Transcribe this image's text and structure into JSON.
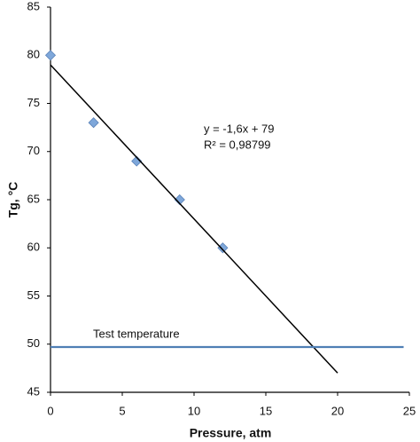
{
  "chart_data": {
    "type": "scatter",
    "x_label": "Pressure, atm",
    "y_label": "Tg, °C",
    "xlim": [
      0,
      25
    ],
    "ylim": [
      45,
      85
    ],
    "xticks": [
      0,
      5,
      10,
      15,
      20,
      25
    ],
    "yticks": [
      45,
      50,
      55,
      60,
      65,
      70,
      75,
      80,
      85
    ],
    "grid": false,
    "series": [
      {
        "name": "Tg",
        "mode": "markers",
        "color": "#7ea7da",
        "x": [
          0,
          3,
          6,
          9,
          12
        ],
        "values": [
          80,
          73,
          69,
          65,
          60
        ]
      },
      {
        "name": "Trendline",
        "mode": "line",
        "color": "#000000",
        "x": [
          0,
          20
        ],
        "values": [
          79,
          47
        ]
      },
      {
        "name": "Test temperature",
        "mode": "line",
        "color": "#4f7fb5",
        "x": [
          0,
          24.6
        ],
        "values": [
          49.7,
          49.7
        ]
      }
    ],
    "annotations": [
      "y = -1,6x + 79",
      "R² = 0,98799"
    ]
  }
}
